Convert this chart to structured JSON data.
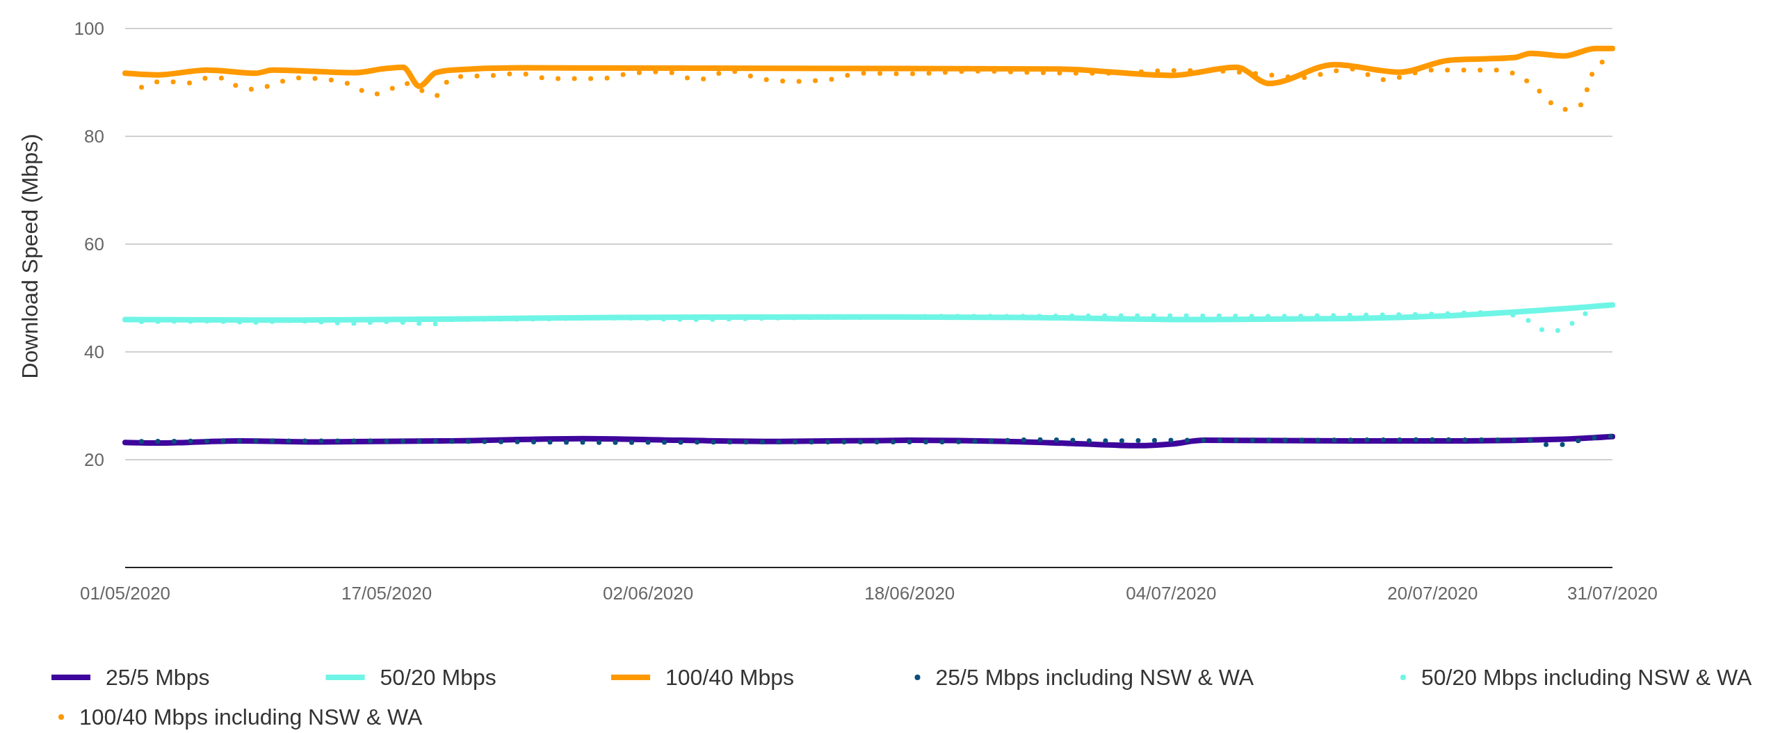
{
  "chart_data": {
    "type": "line",
    "ylabel": "Download Speed (Mbps)",
    "xlim": [
      "2020-05-01",
      "2020-07-31"
    ],
    "ylim": [
      0,
      100
    ],
    "yticks": [
      20,
      40,
      60,
      80,
      100
    ],
    "xticks": [
      {
        "value": "2020-05-01",
        "label": "01/05/2020"
      },
      {
        "value": "2020-05-17",
        "label": "17/05/2020"
      },
      {
        "value": "2020-06-02",
        "label": "02/06/2020"
      },
      {
        "value": "2020-06-18",
        "label": "18/06/2020"
      },
      {
        "value": "2020-07-04",
        "label": "04/07/2020"
      },
      {
        "value": "2020-07-20",
        "label": "20/07/2020"
      },
      {
        "value": "2020-07-31",
        "label": "31/07/2020"
      }
    ],
    "grid": "y",
    "legend": "bottom",
    "series": [
      {
        "name": "25/5 Mbps",
        "color": "#3e069c",
        "line_style": "solid",
        "x": [
          "2020-05-01",
          "2020-05-03",
          "2020-05-08",
          "2020-05-13",
          "2020-05-21",
          "2020-05-29",
          "2020-06-04",
          "2020-06-10",
          "2020-06-18",
          "2020-06-24",
          "2020-06-28",
          "2020-07-02",
          "2020-07-04",
          "2020-07-06",
          "2020-07-15",
          "2020-07-22",
          "2020-07-28",
          "2020-07-31"
        ],
        "values": [
          23.2,
          23.1,
          23.5,
          23.3,
          23.5,
          23.9,
          23.6,
          23.4,
          23.6,
          23.4,
          23.0,
          22.6,
          22.9,
          23.6,
          23.5,
          23.5,
          23.8,
          24.3
        ]
      },
      {
        "name": "50/20 Mbps",
        "color": "#6ff5e6",
        "line_style": "solid",
        "x": [
          "2020-05-01",
          "2020-05-11",
          "2020-05-21",
          "2020-05-31",
          "2020-06-15",
          "2020-06-25",
          "2020-07-06",
          "2020-07-15",
          "2020-07-20",
          "2020-07-25",
          "2020-07-31"
        ],
        "values": [
          46.0,
          45.9,
          46.1,
          46.4,
          46.5,
          46.4,
          46.0,
          46.2,
          46.6,
          47.4,
          48.7
        ]
      },
      {
        "name": "100/40 Mbps",
        "color": "#ff9900",
        "line_style": "solid",
        "x": [
          "2020-05-01",
          "2020-05-03",
          "2020-05-06",
          "2020-05-09",
          "2020-05-10",
          "2020-05-15",
          "2020-05-17",
          "2020-05-18",
          "2020-05-19",
          "2020-05-20",
          "2020-05-21",
          "2020-05-25",
          "2020-06-10",
          "2020-06-27",
          "2020-07-04",
          "2020-07-08",
          "2020-07-10",
          "2020-07-14",
          "2020-07-18",
          "2020-07-21",
          "2020-07-25",
          "2020-07-26",
          "2020-07-28",
          "2020-07-30",
          "2020-07-31"
        ],
        "values": [
          91.7,
          91.4,
          92.3,
          91.7,
          92.3,
          91.8,
          92.6,
          92.8,
          89.3,
          91.8,
          92.3,
          92.7,
          92.6,
          92.5,
          91.3,
          92.8,
          89.8,
          93.3,
          91.9,
          94.1,
          94.6,
          95.4,
          94.9,
          96.3,
          96.3
        ]
      },
      {
        "name": "25/5 Mbps including NSW & WA",
        "color": "#0b4f7c",
        "line_style": "dotted",
        "x": [
          "2020-05-02",
          "2020-05-11",
          "2020-05-21",
          "2020-05-31",
          "2020-06-10",
          "2020-06-20",
          "2020-06-26",
          "2020-06-30",
          "2020-07-04",
          "2020-07-10",
          "2020-07-20",
          "2020-07-26",
          "2020-07-27",
          "2020-07-28",
          "2020-07-29",
          "2020-07-31"
        ],
        "values": [
          23.4,
          23.5,
          23.4,
          23.2,
          23.3,
          23.3,
          23.7,
          23.5,
          23.6,
          23.6,
          23.7,
          23.6,
          22.8,
          22.8,
          23.6,
          24.4
        ]
      },
      {
        "name": "50/20 Mbps including NSW & WA",
        "color": "#6ff5e6",
        "line_style": "dotted",
        "x": [
          "2020-05-02",
          "2020-05-06",
          "2020-05-09",
          "2020-05-11",
          "2020-05-15",
          "2020-05-17",
          "2020-05-19",
          "2020-05-20",
          "2020-05-21",
          "2020-05-26",
          "2020-05-31",
          "2020-06-05",
          "2020-06-10",
          "2020-06-15",
          "2020-06-20",
          "2020-06-25",
          "2020-06-30",
          "2020-07-05",
          "2020-07-10",
          "2020-07-15",
          "2020-07-20",
          "2020-07-23",
          "2020-07-25",
          "2020-07-26",
          "2020-07-27",
          "2020-07-28",
          "2020-07-29",
          "2020-07-30"
        ],
        "values": [
          45.6,
          45.7,
          45.5,
          45.8,
          45.3,
          45.6,
          45.3,
          45.2,
          46.0,
          46.1,
          46.3,
          46.0,
          46.3,
          46.4,
          46.6,
          46.6,
          46.7,
          46.7,
          46.6,
          46.8,
          47.0,
          47.3,
          46.8,
          45.6,
          43.8,
          44.2,
          46.5,
          48.0
        ]
      },
      {
        "name": "100/40 Mbps including NSW & WA",
        "color": "#ff9900",
        "line_style": "dotted",
        "x": [
          "2020-05-02",
          "2020-05-03",
          "2020-05-04",
          "2020-05-05",
          "2020-05-06",
          "2020-05-07",
          "2020-05-08",
          "2020-05-09",
          "2020-05-10",
          "2020-05-11",
          "2020-05-12",
          "2020-05-13",
          "2020-05-14",
          "2020-05-15",
          "2020-05-16",
          "2020-05-17",
          "2020-05-18",
          "2020-05-19",
          "2020-05-20",
          "2020-05-21",
          "2020-05-24",
          "2020-05-25",
          "2020-05-27",
          "2020-05-30",
          "2020-06-01",
          "2020-06-03",
          "2020-06-05",
          "2020-06-07",
          "2020-06-09",
          "2020-06-11",
          "2020-06-13",
          "2020-06-15",
          "2020-06-18",
          "2020-06-22",
          "2020-06-26",
          "2020-06-30",
          "2020-07-04",
          "2020-07-07",
          "2020-07-09",
          "2020-07-10",
          "2020-07-12",
          "2020-07-14",
          "2020-07-15",
          "2020-07-17",
          "2020-07-20",
          "2020-07-24",
          "2020-07-25",
          "2020-07-26",
          "2020-07-28",
          "2020-07-29",
          "2020-07-30",
          "2020-07-31"
        ],
        "values": [
          89.1,
          90.1,
          90.1,
          89.9,
          90.8,
          90.8,
          89.1,
          88.7,
          89.6,
          90.5,
          90.9,
          90.6,
          90.3,
          89.4,
          87.8,
          88.3,
          89.9,
          88.7,
          87.5,
          91.0,
          91.4,
          91.7,
          90.7,
          90.7,
          91.7,
          92.0,
          90.5,
          92.1,
          90.6,
          90.2,
          90.5,
          91.7,
          91.6,
          92.1,
          91.8,
          91.7,
          92.2,
          92.1,
          91.7,
          91.4,
          90.9,
          92.1,
          92.5,
          90.5,
          92.3,
          92.3,
          91.6,
          89.8,
          85.0,
          85.7,
          93.0,
          94.4
        ]
      }
    ]
  }
}
